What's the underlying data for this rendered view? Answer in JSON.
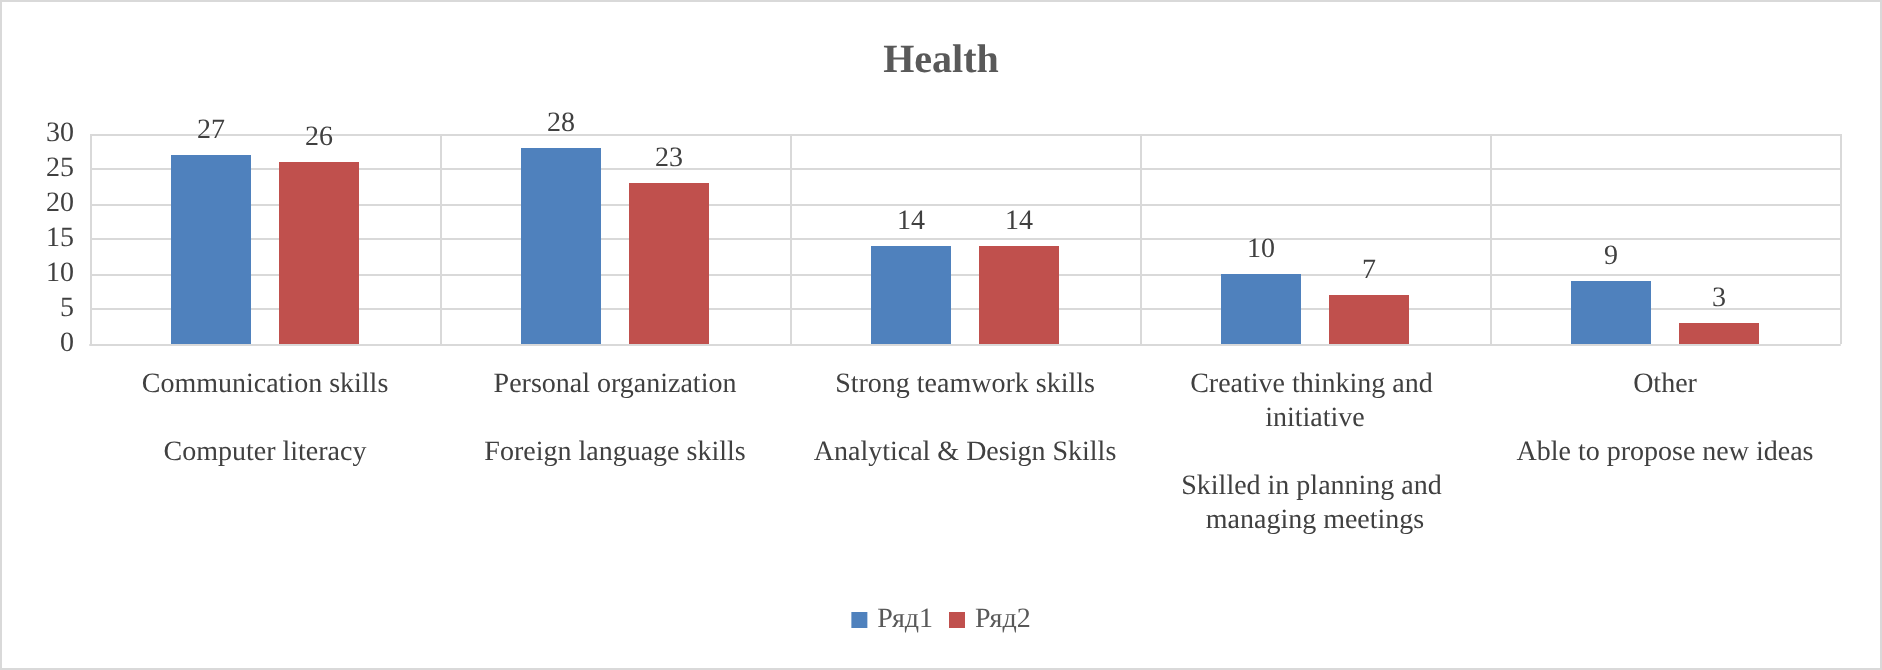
{
  "chart_data": {
    "type": "bar",
    "title": "Health",
    "categories": [
      "Communication skills\n\nComputer literacy",
      "Personal organization\n\nForeign language skills",
      "Strong teamwork skills\n\nAnalytical & Design Skills",
      "Creative thinking and initiative\n\nSkilled in planning and managing meetings",
      "Other\n\nAble to propose new ideas"
    ],
    "series": [
      {
        "name": "Ряд1",
        "color": "#4f81bd",
        "values": [
          27,
          28,
          14,
          10,
          9
        ]
      },
      {
        "name": "Ряд2",
        "color": "#c0504d",
        "values": [
          26,
          23,
          14,
          7,
          3
        ]
      }
    ],
    "ylim": [
      0,
      30
    ],
    "yticks": [
      0,
      5,
      10,
      15,
      20,
      25,
      30
    ],
    "grid": true,
    "legend": "bottom",
    "data_labels": true
  }
}
